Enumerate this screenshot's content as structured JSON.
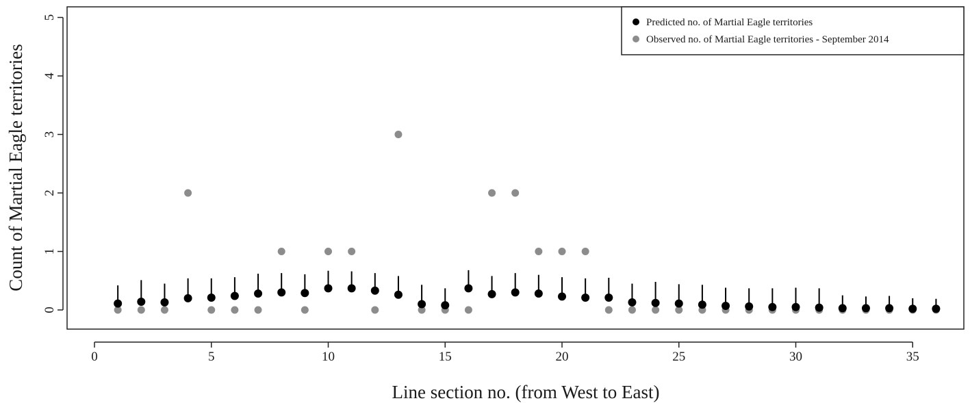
{
  "chart_data": {
    "type": "scatter",
    "title": "",
    "xlabel": "Line section no. (from West to East)",
    "ylabel": "Count of  Martial Eagle territories",
    "xlim": [
      0,
      36
    ],
    "ylim": [
      0,
      5
    ],
    "xticks": [
      0,
      5,
      10,
      15,
      20,
      25,
      30,
      35
    ],
    "yticks": [
      0,
      1,
      2,
      3,
      4,
      5
    ],
    "grid": false,
    "legend_position": "top-right",
    "x": [
      1,
      2,
      3,
      4,
      5,
      6,
      7,
      8,
      9,
      10,
      11,
      12,
      13,
      14,
      15,
      16,
      17,
      18,
      19,
      20,
      21,
      22,
      23,
      24,
      25,
      26,
      27,
      28,
      29,
      30,
      31,
      32,
      33,
      34,
      35,
      36
    ],
    "series": [
      {
        "name": "Predicted no. of Martial Eagle territories",
        "color": "#000000",
        "values": [
          0.11,
          0.14,
          0.13,
          0.2,
          0.21,
          0.24,
          0.28,
          0.3,
          0.29,
          0.37,
          0.37,
          0.33,
          0.26,
          0.1,
          0.08,
          0.37,
          0.27,
          0.3,
          0.28,
          0.23,
          0.21,
          0.21,
          0.13,
          0.12,
          0.11,
          0.09,
          0.07,
          0.06,
          0.05,
          0.05,
          0.04,
          0.03,
          0.03,
          0.03,
          0.02,
          0.02
        ],
        "error_upper": [
          0.42,
          0.51,
          0.45,
          0.54,
          0.54,
          0.56,
          0.62,
          0.63,
          0.61,
          0.67,
          0.66,
          0.63,
          0.58,
          0.43,
          0.37,
          0.68,
          0.58,
          0.63,
          0.6,
          0.56,
          0.54,
          0.55,
          0.45,
          0.48,
          0.44,
          0.43,
          0.38,
          0.37,
          0.37,
          0.38,
          0.37,
          0.25,
          0.23,
          0.24,
          0.2,
          0.19
        ]
      },
      {
        "name": "Observed no. of Martial Eagle territories - September 2014",
        "color": "#8c8c8c",
        "values": [
          0,
          0,
          0,
          2,
          0,
          0,
          0,
          1,
          0,
          1,
          1,
          0,
          3,
          0,
          0,
          0,
          2,
          2,
          1,
          1,
          1,
          0,
          0,
          0,
          0,
          0,
          0,
          0,
          0,
          0,
          0,
          0,
          0,
          0,
          0,
          0
        ]
      }
    ]
  }
}
